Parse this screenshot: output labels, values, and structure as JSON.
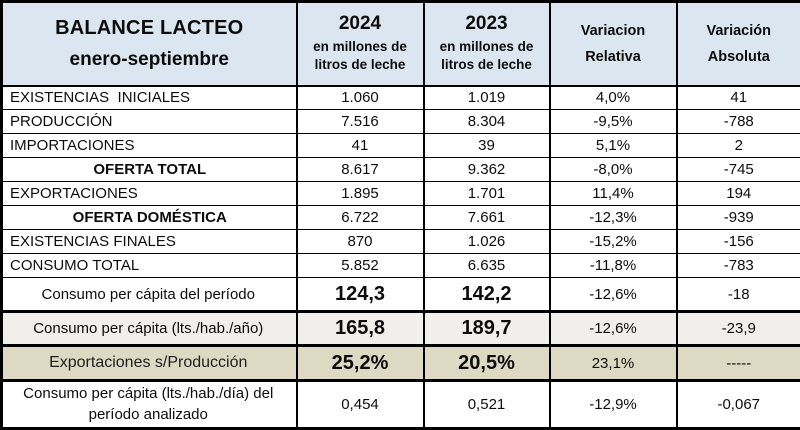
{
  "colors": {
    "header_bg": "#dce6f1",
    "gray_row_bg": "#f0efec",
    "tan_row_bg": "#ddd9c3",
    "border": "#000000",
    "text": "#0d0d0d"
  },
  "chart_data": {
    "type": "table",
    "title": "BALANCE LACTEO",
    "subtitle": "enero-septiembre",
    "header": {
      "col_2024": {
        "year": "2024",
        "sub": "en millones de litros de leche"
      },
      "col_2023": {
        "year": "2023",
        "sub": "en millones de litros de leche"
      },
      "col_rel": {
        "line1": "Variacion",
        "line2": "Relativa"
      },
      "col_abs": {
        "line1": "Variación",
        "line2": "Absoluta"
      }
    },
    "rows": [
      {
        "label": "EXISTENCIAS  INICIALES",
        "y2024": "1.060",
        "y2023": "1.019",
        "var_rel": "4,0%",
        "var_abs": "41",
        "style": "normal",
        "big_values": false
      },
      {
        "label": "PRODUCCIÓN",
        "y2024": "7.516",
        "y2023": "8.304",
        "var_rel": "-9,5%",
        "var_abs": "-788",
        "style": "normal",
        "big_values": false
      },
      {
        "label": "IMPORTACIONES",
        "y2024": "41",
        "y2023": "39",
        "var_rel": "5,1%",
        "var_abs": "2",
        "style": "normal",
        "big_values": false
      },
      {
        "label": "OFERTA TOTAL",
        "y2024": "8.617",
        "y2023": "9.362",
        "var_rel": "-8,0%",
        "var_abs": "-745",
        "style": "summary",
        "big_values": false
      },
      {
        "label": "EXPORTACIONES",
        "y2024": "1.895",
        "y2023": "1.701",
        "var_rel": "11,4%",
        "var_abs": "194",
        "style": "normal",
        "big_values": false
      },
      {
        "label": "OFERTA DOMÉSTICA",
        "y2024": "6.722",
        "y2023": "7.661",
        "var_rel": "-12,3%",
        "var_abs": "-939",
        "style": "summary",
        "big_values": false
      },
      {
        "label": "EXISTENCIAS FINALES",
        "y2024": "870",
        "y2023": "1.026",
        "var_rel": "-15,2%",
        "var_abs": "-156",
        "style": "normal",
        "big_values": false
      },
      {
        "label": "CONSUMO TOTAL",
        "y2024": "5.852",
        "y2023": "6.635",
        "var_rel": "-11,8%",
        "var_abs": "-783",
        "style": "normal",
        "big_values": false
      },
      {
        "label": "Consumo per cápita del período",
        "y2024": "124,3",
        "y2023": "142,2",
        "var_rel": "-12,6%",
        "var_abs": "-18",
        "style": "percap",
        "big_values": true
      },
      {
        "label": "Consumo per cápita (lts./hab./año)",
        "y2024": "165,8",
        "y2023": "189,7",
        "var_rel": "-12,6%",
        "var_abs": "-23,9",
        "style": "percap-gray",
        "big_values": true
      },
      {
        "label": "Exportaciones s/Producción",
        "y2024": "25,2%",
        "y2023": "20,5%",
        "var_rel": "23,1%",
        "var_abs": "-----",
        "style": "ratio-tan",
        "big_values": true
      },
      {
        "label": "Consumo per cápita (lts./hab./día) del período analizado",
        "y2024": "0,454",
        "y2023": "0,521",
        "var_rel": "-12,9%",
        "var_abs": "-0,067",
        "style": "tall",
        "big_values": false
      }
    ]
  }
}
